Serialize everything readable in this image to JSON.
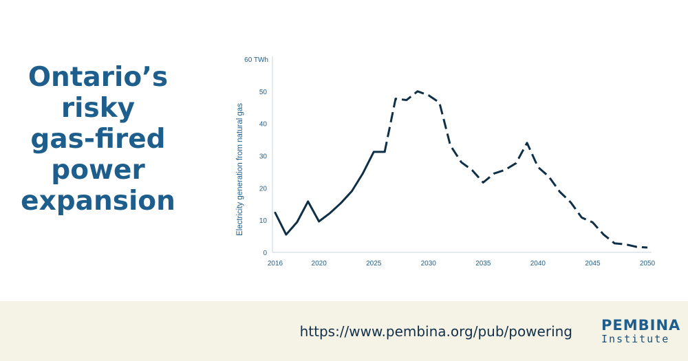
{
  "headline": {
    "lines": [
      "Ontario’s",
      "risky",
      "gas-fired",
      "power",
      "expansion"
    ],
    "color": "#1d5e8c"
  },
  "chart_data": {
    "type": "line",
    "title": "",
    "ylabel": "Electricity generation from natural gas",
    "yunit_label": "60 TWh",
    "ylim": [
      0,
      60
    ],
    "xlim": [
      2016,
      2050
    ],
    "yticks": [
      0,
      10,
      20,
      30,
      40,
      50
    ],
    "xticks": [
      2016,
      2020,
      2025,
      2030,
      2035,
      2040,
      2045,
      2050
    ],
    "grid": false,
    "line_color": "#0f2f47",
    "series": [
      {
        "style": "solid",
        "x": [
          2016,
          2017,
          2018,
          2019,
          2020,
          2021,
          2022,
          2023,
          2024,
          2025,
          2026
        ],
        "y": [
          12.3,
          5.5,
          9.4,
          15.8,
          9.6,
          12.2,
          15.3,
          19.0,
          24.5,
          31.2,
          31.2
        ]
      },
      {
        "style": "dashed",
        "x": [
          2026,
          2027,
          2028,
          2029,
          2030,
          2031,
          2032,
          2033,
          2034,
          2035,
          2036,
          2037,
          2038,
          2039,
          2040,
          2041,
          2042,
          2043,
          2044,
          2045,
          2046,
          2047,
          2048,
          2049,
          2050
        ],
        "y": [
          31.2,
          47.7,
          47.3,
          50.0,
          48.8,
          46.5,
          33.2,
          28.0,
          25.5,
          21.7,
          24.5,
          25.6,
          27.7,
          34.0,
          26.5,
          23.5,
          18.8,
          15.5,
          10.8,
          9.3,
          5.5,
          2.8,
          2.5,
          1.7,
          1.5
        ]
      }
    ]
  },
  "footer": {
    "url": "https://www.pembina.org/pub/powering",
    "logo_name": "PEMBINA",
    "logo_sub": "Institute",
    "background": "#f5f3e6"
  }
}
